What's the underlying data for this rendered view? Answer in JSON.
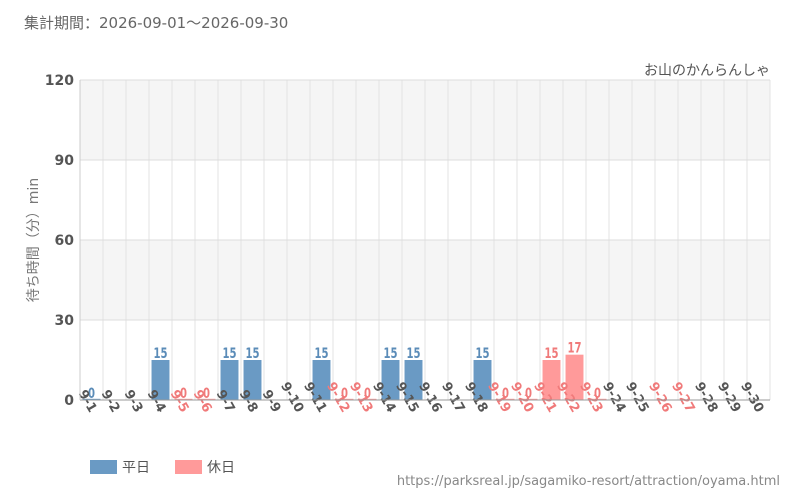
{
  "header": {
    "period_label": "集計期間：2026-09-01～2026-09-30"
  },
  "chart_data": {
    "type": "bar",
    "title": "お山のかんらんしゃ",
    "ylabel": "待ち時間（分）min",
    "xlabel": "",
    "ylim": [
      0,
      120
    ],
    "yticks": [
      0,
      30,
      60,
      90,
      120
    ],
    "grid": true,
    "legend_position": "bottom-left",
    "categories": [
      "9-1",
      "9-2",
      "9-3",
      "9-4",
      "9-5",
      "9-6",
      "9-7",
      "9-8",
      "9-9",
      "9-10",
      "9-11",
      "9-12",
      "9-13",
      "9-14",
      "9-15",
      "9-16",
      "9-17",
      "9-18",
      "9-19",
      "9-20",
      "9-21",
      "9-22",
      "9-23",
      "9-24",
      "9-25",
      "9-26",
      "9-27",
      "9-28",
      "9-29",
      "9-30"
    ],
    "day_type": [
      "weekday",
      "weekday",
      "weekday",
      "weekday",
      "holiday",
      "holiday",
      "weekday",
      "weekday",
      "weekday",
      "weekday",
      "weekday",
      "holiday",
      "holiday",
      "weekday",
      "weekday",
      "weekday",
      "weekday",
      "weekday",
      "holiday",
      "holiday",
      "holiday",
      "holiday",
      "holiday",
      "weekday",
      "weekday",
      "holiday",
      "holiday",
      "weekday",
      "weekday",
      "weekday"
    ],
    "values": [
      0,
      null,
      null,
      15,
      0,
      0,
      15,
      15,
      null,
      null,
      15,
      0,
      0,
      15,
      15,
      null,
      null,
      15,
      0,
      0,
      15,
      17,
      0,
      null,
      null,
      null,
      null,
      null,
      null,
      null
    ],
    "series": [
      {
        "name": "平日",
        "color": "#6a9ac4",
        "label_color": "#5b8cb8"
      },
      {
        "name": "休日",
        "color": "#ff9a9a",
        "label_color": "#f07a7a"
      }
    ]
  },
  "footer": {
    "source_url": "https://parksreal.jp/sagamiko-resort/attraction/oyama.html"
  }
}
